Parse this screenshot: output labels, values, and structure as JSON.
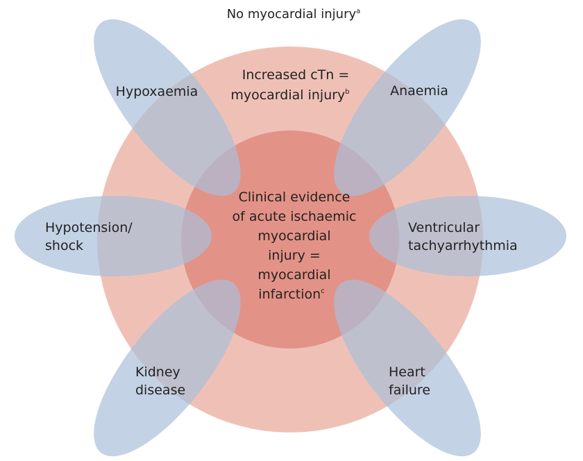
{
  "title": {
    "text": "No myocardial injury",
    "sup": "a"
  },
  "outer_circle": {
    "line1": "Increased cTn =",
    "line2": "myocardial injury",
    "sup": "b",
    "color": "#efc1b6"
  },
  "inner_circle": {
    "line1": "Clinical evidence",
    "line2": "of acute ischaemic",
    "line3": "myocardial",
    "line4": "injury =",
    "line5": "myocardial",
    "line6": "infarction",
    "sup": "c",
    "color": "#e08a7f"
  },
  "petal_color": "#a9bfd8",
  "petals": {
    "hypoxaemia": {
      "line1": "Hypoxaemia"
    },
    "anaemia": {
      "line1": "Anaemia"
    },
    "hypotension": {
      "line1": "Hypotension/",
      "line2": "shock"
    },
    "ventricular": {
      "line1": "Ventricular",
      "line2": "tachyarrhythmia"
    },
    "kidney": {
      "line1": "Kidney",
      "line2": "disease"
    },
    "heart": {
      "line1": "Heart",
      "line2": "failure"
    }
  }
}
